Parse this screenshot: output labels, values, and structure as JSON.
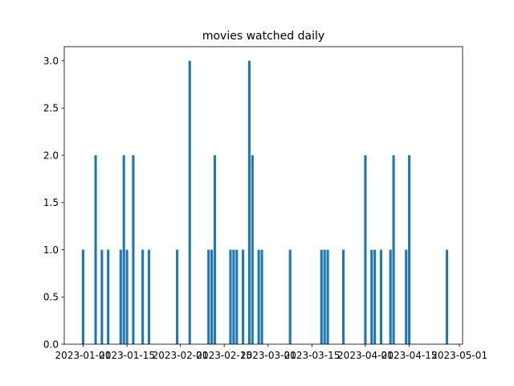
{
  "chart_data": {
    "type": "bar",
    "title": "movies watched daily",
    "xlabel": "",
    "ylabel": "",
    "x_axis_type": "date",
    "xlim": [
      "2022-12-26",
      "2023-05-02"
    ],
    "ylim": [
      0,
      3.15
    ],
    "x_ticks": [
      "2023-01-01",
      "2023-01-15",
      "2023-02-01",
      "2023-02-15",
      "2023-03-01",
      "2023-03-15",
      "2023-04-01",
      "2023-04-15",
      "2023-05-01"
    ],
    "y_ticks": [
      0.0,
      0.5,
      1.0,
      1.5,
      2.0,
      2.5,
      3.0
    ],
    "y_tick_labels": [
      "0.0",
      "0.5",
      "1.0",
      "1.5",
      "2.0",
      "2.5",
      "3.0"
    ],
    "bar_color": "#1f77b4",
    "grid": false,
    "legend": "none",
    "data": [
      {
        "x": "2023-01-01",
        "y": 1
      },
      {
        "x": "2023-01-05",
        "y": 2
      },
      {
        "x": "2023-01-07",
        "y": 1
      },
      {
        "x": "2023-01-09",
        "y": 1
      },
      {
        "x": "2023-01-13",
        "y": 1
      },
      {
        "x": "2023-01-14",
        "y": 2
      },
      {
        "x": "2023-01-15",
        "y": 1
      },
      {
        "x": "2023-01-17",
        "y": 2
      },
      {
        "x": "2023-01-20",
        "y": 1
      },
      {
        "x": "2023-01-22",
        "y": 1
      },
      {
        "x": "2023-01-31",
        "y": 1
      },
      {
        "x": "2023-02-04",
        "y": 3
      },
      {
        "x": "2023-02-10",
        "y": 1
      },
      {
        "x": "2023-02-11",
        "y": 1
      },
      {
        "x": "2023-02-12",
        "y": 2
      },
      {
        "x": "2023-02-17",
        "y": 1
      },
      {
        "x": "2023-02-18",
        "y": 1
      },
      {
        "x": "2023-02-19",
        "y": 1
      },
      {
        "x": "2023-02-21",
        "y": 1
      },
      {
        "x": "2023-02-23",
        "y": 3
      },
      {
        "x": "2023-02-24",
        "y": 2
      },
      {
        "x": "2023-02-26",
        "y": 1
      },
      {
        "x": "2023-02-27",
        "y": 1
      },
      {
        "x": "2023-03-08",
        "y": 1
      },
      {
        "x": "2023-03-18",
        "y": 1
      },
      {
        "x": "2023-03-19",
        "y": 1
      },
      {
        "x": "2023-03-20",
        "y": 1
      },
      {
        "x": "2023-03-25",
        "y": 1
      },
      {
        "x": "2023-04-01",
        "y": 2
      },
      {
        "x": "2023-04-03",
        "y": 1
      },
      {
        "x": "2023-04-04",
        "y": 1
      },
      {
        "x": "2023-04-06",
        "y": 1
      },
      {
        "x": "2023-04-09",
        "y": 1
      },
      {
        "x": "2023-04-10",
        "y": 2
      },
      {
        "x": "2023-04-14",
        "y": 1
      },
      {
        "x": "2023-04-15",
        "y": 2
      },
      {
        "x": "2023-04-27",
        "y": 1
      }
    ]
  }
}
